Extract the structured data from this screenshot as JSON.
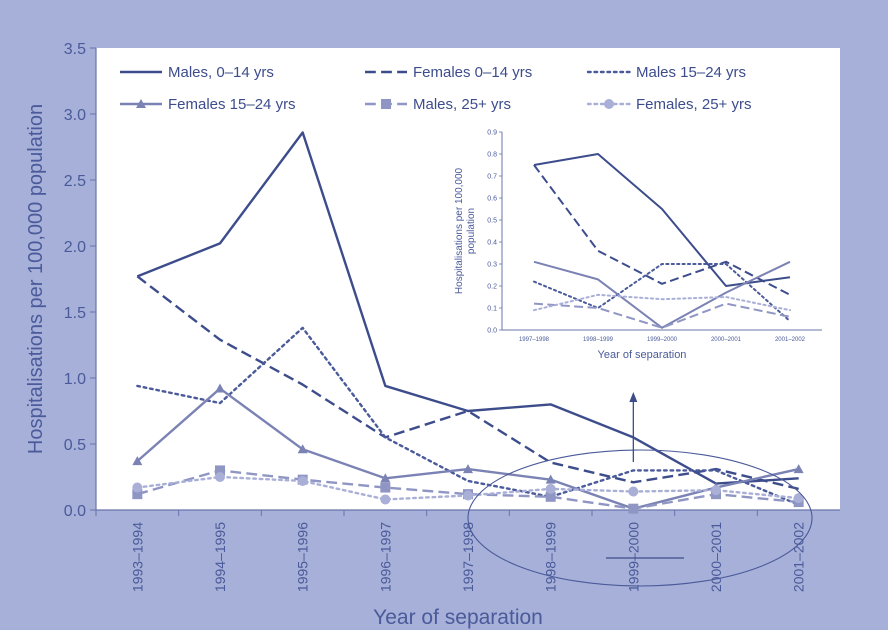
{
  "chart_data": {
    "main": {
      "type": "line",
      "xlabel": "Year of separation",
      "ylabel": "Hospitalisations per 100,000 population",
      "ylim": [
        0,
        3.5
      ],
      "yticks": [
        "0.0",
        "0.5",
        "1.0",
        "1.5",
        "2.0",
        "2.5",
        "3.0",
        "3.5"
      ],
      "categories": [
        "1993–1994",
        "1994–1995",
        "1995–1996",
        "1996–1997",
        "1997–1998",
        "1998–1999",
        "1999–2000",
        "2000–2001",
        "2001–2002"
      ],
      "legend_placement": "top",
      "series": [
        {
          "name": "Males, 0–14 yrs",
          "color": "#3d4d8c",
          "dash": "solid",
          "marker": "none",
          "values": [
            1.77,
            2.02,
            2.86,
            0.94,
            0.75,
            0.8,
            0.55,
            0.2,
            0.24
          ]
        },
        {
          "name": "Females 0–14 yrs",
          "color": "#3d4d8c",
          "dash": "longdash",
          "marker": "none",
          "values": [
            1.77,
            1.29,
            0.95,
            0.55,
            0.75,
            0.36,
            0.21,
            0.31,
            0.16
          ]
        },
        {
          "name": "Males 15–24 yrs",
          "color": "#4a5a9a",
          "dash": "dotted",
          "marker": "none",
          "values": [
            0.94,
            0.81,
            1.38,
            0.55,
            0.22,
            0.1,
            0.3,
            0.3,
            0.04
          ]
        },
        {
          "name": "Females 15–24 yrs",
          "color": "#7b82b4",
          "dash": "solid",
          "marker": "triangle",
          "values": [
            0.37,
            0.92,
            0.46,
            0.24,
            0.31,
            0.23,
            0.01,
            0.17,
            0.31
          ]
        },
        {
          "name": "Males, 25+ yrs",
          "color": "#8f96c4",
          "dash": "longdash",
          "marker": "square",
          "values": [
            0.12,
            0.3,
            0.23,
            0.17,
            0.12,
            0.1,
            0.01,
            0.12,
            0.06
          ]
        },
        {
          "name": "Females, 25+ yrs",
          "color": "#a9afd6",
          "dash": "dotted",
          "marker": "circle",
          "values": [
            0.17,
            0.25,
            0.22,
            0.08,
            0.11,
            0.16,
            0.14,
            0.15,
            0.09
          ]
        }
      ]
    },
    "inset": {
      "type": "line",
      "xlabel": "Year of separation",
      "ylabel": "Hospitalisations per 100,000 population",
      "ylim": [
        0,
        0.9
      ],
      "yticks": [
        "0.0",
        "0.1",
        "0.2",
        "0.3",
        "0.4",
        "0.5",
        "0.6",
        "0.7",
        "0.8",
        "0.9"
      ],
      "categories": [
        "1997–1998",
        "1998–1999",
        "1999–2000",
        "2000–2001",
        "2001–2002"
      ],
      "series": [
        {
          "color": "#3d4d8c",
          "dash": "solid",
          "values": [
            0.75,
            0.8,
            0.55,
            0.2,
            0.24
          ]
        },
        {
          "color": "#3d4d8c",
          "dash": "longdash",
          "values": [
            0.75,
            0.36,
            0.21,
            0.31,
            0.16
          ]
        },
        {
          "color": "#4a5a9a",
          "dash": "dotted",
          "values": [
            0.22,
            0.1,
            0.3,
            0.3,
            0.04
          ]
        },
        {
          "color": "#7b82b4",
          "dash": "solid",
          "values": [
            0.31,
            0.23,
            0.01,
            0.17,
            0.31
          ]
        },
        {
          "color": "#8f96c4",
          "dash": "longdash",
          "values": [
            0.12,
            0.1,
            0.01,
            0.12,
            0.06
          ]
        },
        {
          "color": "#a9afd6",
          "dash": "dotted",
          "values": [
            0.09,
            0.16,
            0.14,
            0.15,
            0.09
          ]
        }
      ]
    }
  }
}
